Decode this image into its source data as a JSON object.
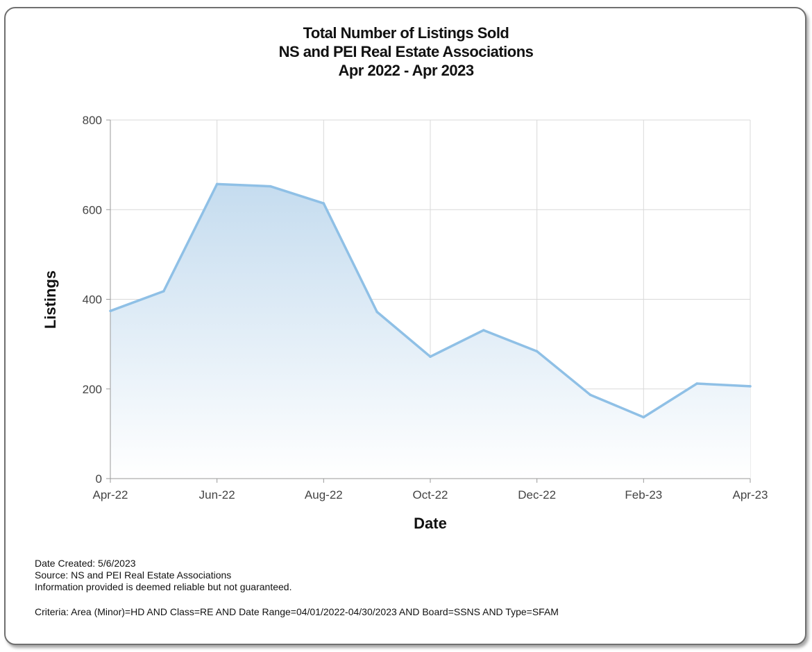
{
  "chart_data": {
    "type": "area",
    "title": [
      "Total Number of Listings Sold",
      "NS and PEI Real Estate Associations",
      "Apr 2022 - Apr 2023"
    ],
    "xlabel": "Date",
    "ylabel": "Listings",
    "x": [
      "2022-04",
      "2022-05",
      "2022-06",
      "2022-07",
      "2022-08",
      "2022-09",
      "2022-10",
      "2022-11",
      "2022-12",
      "2023-01",
      "2023-02",
      "2023-03",
      "2023-04"
    ],
    "x_tick_labels": [
      "Apr-22",
      "Jun-22",
      "Aug-22",
      "Oct-22",
      "Dec-22",
      "Feb-23",
      "Apr-23"
    ],
    "values": [
      374,
      418,
      657,
      652,
      614,
      372,
      272,
      331,
      284,
      187,
      137,
      212,
      206
    ],
    "y_ticks": [
      0,
      200,
      400,
      600,
      800
    ],
    "ylim": [
      0,
      800
    ],
    "grid": true,
    "colors": {
      "line": "#8fc0e6",
      "fill_top": "#c5dcef",
      "fill_bottom": "#ffffff"
    }
  },
  "footer": {
    "date_created": "Date Created: 5/6/2023",
    "source": "Source: NS and PEI Real Estate Associations",
    "disclaimer": "Information provided is deemed reliable but not guaranteed.",
    "criteria": "Criteria: Area (Minor)=HD AND Class=RE AND Date Range=04/01/2022-04/30/2023 AND Board=SSNS AND Type=SFAM"
  }
}
